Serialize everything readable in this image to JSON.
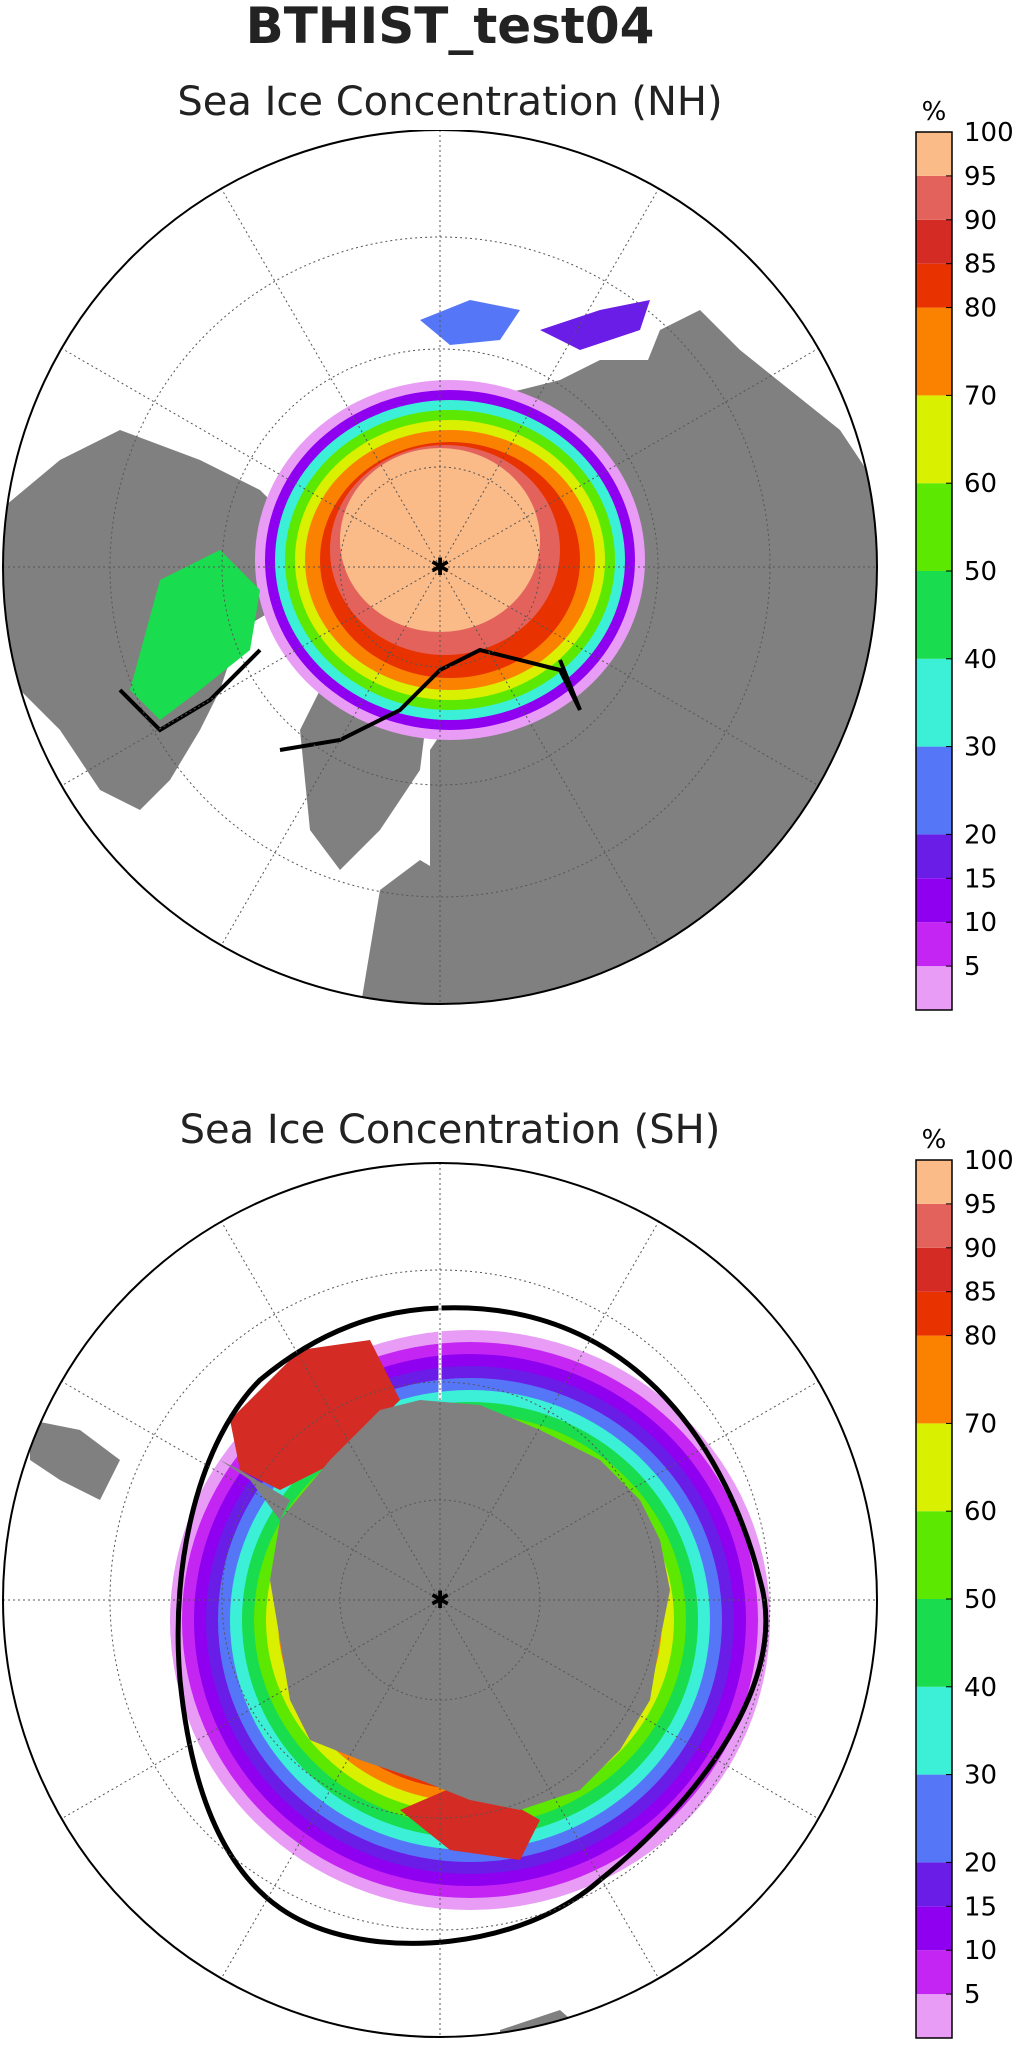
{
  "title": "BTHIST_test04",
  "colormap": {
    "levels": [
      0,
      5,
      10,
      15,
      20,
      30,
      40,
      50,
      60,
      70,
      80,
      85,
      90,
      95,
      100
    ],
    "colors": [
      "#e89cf5",
      "#c425f2",
      "#8f00f0",
      "#6a1de6",
      "#5577f7",
      "#3bf0d6",
      "#19dc4e",
      "#5ce800",
      "#d9f000",
      "#fb8200",
      "#e83300",
      "#d42b24",
      "#e4625c",
      "#fbbb88"
    ],
    "land_color": "#808080",
    "ocean_color": "#ffffff",
    "edge_contour_color": "#000000"
  },
  "chart_data": [
    {
      "type": "heatmap",
      "projection": "polar stereographic",
      "hemisphere": "NH",
      "title": "Sea Ice Concentration (NH)",
      "colorbar_label": "%",
      "colorbar_ticks": [
        5,
        10,
        15,
        20,
        30,
        40,
        50,
        60,
        70,
        80,
        85,
        90,
        95,
        100
      ],
      "grid": true,
      "value_range": [
        0,
        100
      ]
    },
    {
      "type": "heatmap",
      "projection": "polar stereographic",
      "hemisphere": "SH",
      "title": "Sea Ice Concentration (SH)",
      "colorbar_label": "%",
      "colorbar_ticks": [
        5,
        10,
        15,
        20,
        30,
        40,
        50,
        60,
        70,
        80,
        85,
        90,
        95,
        100
      ],
      "grid": true,
      "value_range": [
        0,
        100
      ]
    }
  ]
}
